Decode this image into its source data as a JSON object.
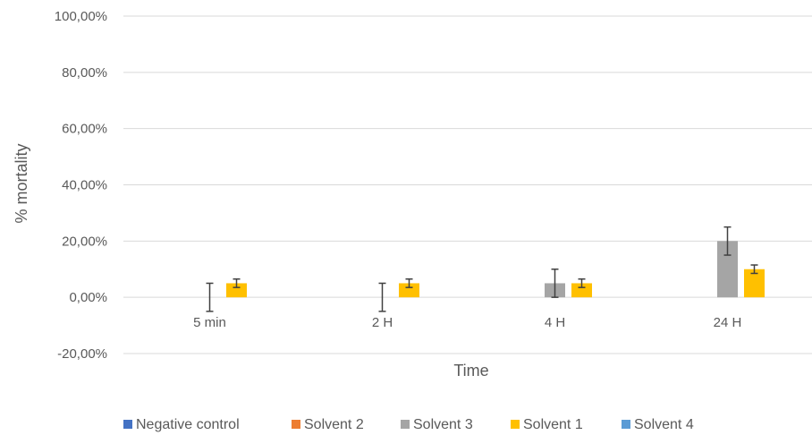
{
  "chart_data": {
    "type": "bar",
    "title": "",
    "xlabel": "Time",
    "ylabel": "% mortality",
    "categories": [
      "5 min",
      "2 H",
      "4 H",
      "24 H"
    ],
    "ylim": [
      -0.2,
      1.0
    ],
    "yticks": [
      -0.2,
      0.0,
      0.2,
      0.4,
      0.6,
      0.8,
      1.0
    ],
    "ytick_labels": [
      "-20,00%",
      "0,00%",
      "20,00%",
      "40,00%",
      "60,00%",
      "80,00%",
      "100,00%"
    ],
    "grid": true,
    "legend_position": "bottom",
    "series": [
      {
        "name": "Negative control",
        "color": "#4472C4",
        "values": [
          0,
          0,
          0,
          0
        ],
        "errors": [
          0,
          0,
          0,
          0
        ]
      },
      {
        "name": "Solvent 2",
        "color": "#ED7D31",
        "values": [
          0,
          0,
          0,
          0
        ],
        "errors": [
          0,
          0,
          0,
          0
        ]
      },
      {
        "name": "Solvent 3",
        "color": "#A5A5A5",
        "values": [
          0,
          0,
          0.05,
          0.2
        ],
        "errors": [
          0.05,
          0.05,
          0.05,
          0.05
        ]
      },
      {
        "name": "Solvent 1",
        "color": "#FFC000",
        "values": [
          0.05,
          0.05,
          0.05,
          0.1
        ],
        "errors": [
          0.015,
          0.015,
          0.015,
          0.015
        ]
      },
      {
        "name": "Solvent 4",
        "color": "#5B9BD5",
        "values": [
          0,
          0,
          0,
          0
        ],
        "errors": [
          0,
          0,
          0,
          0
        ]
      }
    ]
  }
}
